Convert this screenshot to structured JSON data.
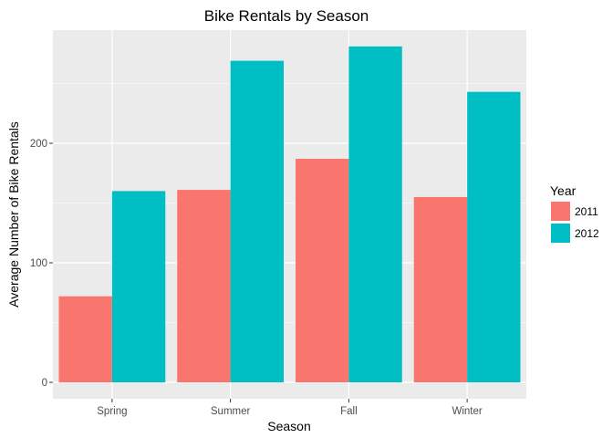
{
  "chart_data": {
    "type": "bar",
    "title": "Bike Rentals by Season",
    "xlabel": "Season",
    "ylabel": "Average Number of Bike Rentals",
    "categories": [
      "Spring",
      "Summer",
      "Fall",
      "Winter"
    ],
    "series": [
      {
        "name": "2011",
        "values": [
          72,
          161,
          187,
          155
        ],
        "color": "#F8766D"
      },
      {
        "name": "2012",
        "values": [
          160,
          269,
          281,
          243
        ],
        "color": "#00BFC4"
      }
    ],
    "ylim": [
      0,
      295
    ],
    "yticks": [
      0,
      100,
      200
    ],
    "yticks_labels": [
      "0",
      "100",
      "200"
    ],
    "grid": true,
    "panel_background": "#EBEBEB",
    "grid_color": "#FFFFFF",
    "legend": {
      "title": "Year",
      "position": "right"
    }
  }
}
